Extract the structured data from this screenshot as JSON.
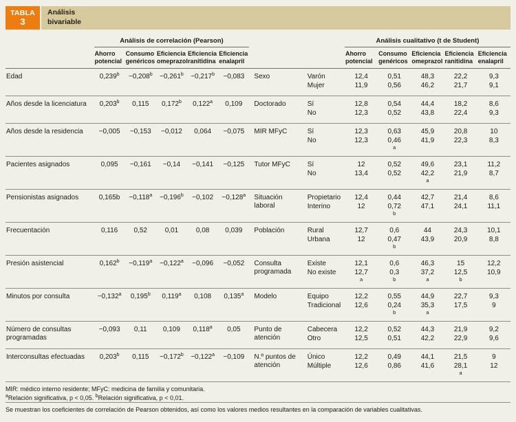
{
  "header": {
    "label": "TABLA",
    "number": "3",
    "title": "Análisis bivariable"
  },
  "groups": {
    "pearson": "Análisis de correlación (Pearson)",
    "student": "Análisis cualitativo (t de Student)"
  },
  "columns": [
    "Ahorro potencial",
    "Consumo genéricos",
    "Eficiencia omeprazol",
    "Eficiencia ranitidina",
    "Eficiencia enalapril"
  ],
  "rows": [
    {
      "label": "Edad",
      "pearson": [
        "0,239^b",
        "−0,208^b",
        "−0,261^b",
        "−0,217^b",
        "−0,083"
      ],
      "variable": "Sexo",
      "levels": [
        {
          "name": "Varón",
          "values": [
            "12,4",
            "0,51",
            "48,3",
            "22,2",
            "9,3"
          ]
        },
        {
          "name": "Mujer",
          "values": [
            "11,9",
            "0,56",
            "46,2",
            "21,7",
            "9,1"
          ]
        }
      ]
    },
    {
      "label": "Años desde la licenciatura",
      "pearson": [
        "0,203^b",
        "0,115",
        "0,172^b",
        "0,122^a",
        "0,109"
      ],
      "variable": "Doctorado",
      "levels": [
        {
          "name": "Sí",
          "values": [
            "12,8",
            "0,54",
            "44,4",
            "18,2",
            "8,6"
          ]
        },
        {
          "name": "No",
          "values": [
            "12,3",
            "0,52",
            "43,8",
            "22,4",
            "9,3"
          ]
        }
      ]
    },
    {
      "label": "Años desde la residencia",
      "pearson": [
        "−0,005",
        "−0,153",
        "−0,012",
        "0,064",
        "−0,075"
      ],
      "variable": "MIR MFyC",
      "levels": [
        {
          "name": "Sí",
          "values": [
            "12,3",
            "0,63",
            "45,9",
            "20,8",
            "10"
          ]
        },
        {
          "name": "No",
          "values": [
            "12,3",
            "0,46_a",
            "41,9",
            "22,3",
            "8,3"
          ]
        }
      ]
    },
    {
      "label": "Pacientes asignados",
      "pearson": [
        "0,095",
        "−0,161",
        "−0,14",
        "−0,141",
        "−0,125"
      ],
      "variable": "Tutor MFyC",
      "levels": [
        {
          "name": "Sí",
          "values": [
            "12",
            "0,52",
            "49,6",
            "23,1",
            "11,2"
          ]
        },
        {
          "name": "No",
          "values": [
            "13,4",
            "0,52",
            "42,2_a",
            "21,9",
            "8,7"
          ]
        }
      ]
    },
    {
      "label": "Pensionistas asignados",
      "pearson": [
        "0,165b",
        "−0,118^a",
        "−0,196^b",
        "−0,102",
        "−0,128^a"
      ],
      "variable": "Situación laboral",
      "levels": [
        {
          "name": "Propietario",
          "values": [
            "12,4",
            "0,44",
            "42,7",
            "21,4",
            "8,6"
          ]
        },
        {
          "name": "Interino",
          "values": [
            "12",
            "0,72_b",
            "47,1",
            "24,1",
            "11,1"
          ]
        }
      ]
    },
    {
      "label": "Frecuentación",
      "pearson": [
        "0,116",
        "0,52",
        "0,01",
        "0,08",
        "0,039"
      ],
      "variable": "Población",
      "levels": [
        {
          "name": "Rural",
          "values": [
            "12,7",
            "0,6",
            "44",
            "24,3",
            "10,1"
          ]
        },
        {
          "name": "Urbana",
          "values": [
            "12",
            "0,47_b",
            "43,9",
            "20,9",
            "8,8"
          ]
        }
      ]
    },
    {
      "label": "Presión asistencial",
      "pearson": [
        "0,162^b",
        "−0,119^a",
        "−0,122^a",
        "−0,096",
        "−0,052"
      ],
      "variable": "Consulta programada",
      "levels": [
        {
          "name": "Existe",
          "values": [
            "12,1",
            "0,6",
            "46,3",
            "15",
            "12,2"
          ]
        },
        {
          "name": "No existe",
          "values": [
            "12,7_a",
            "0,3_b",
            "37,2_a",
            "12,5_b",
            "10,9"
          ]
        }
      ]
    },
    {
      "label": "Minutos por consulta",
      "pearson": [
        "−0,132^a",
        "0,195^b",
        "0,119^a",
        "0,108",
        "0,135^a"
      ],
      "variable": "Modelo",
      "levels": [
        {
          "name": "Equipo",
          "values": [
            "12,2",
            "0,55",
            "44,9",
            "22,7",
            "9,3"
          ]
        },
        {
          "name": "Tradicional",
          "values": [
            "12,6",
            "0,24_b",
            "35,3_a",
            "17,5",
            "9"
          ]
        }
      ]
    },
    {
      "label": "Número de consultas programadas",
      "pearson": [
        "−0,093",
        "0,11",
        "0,109",
        "0,118^a",
        "0,05"
      ],
      "variable": "Punto de atención",
      "levels": [
        {
          "name": "Cabecera",
          "values": [
            "12,2",
            "0,52",
            "44,3",
            "21,9",
            "9,2"
          ]
        },
        {
          "name": "Otro",
          "values": [
            "12,5",
            "0,51",
            "42,2",
            "22,9",
            "9,6"
          ]
        }
      ]
    },
    {
      "label": "Interconsultas efectuadas",
      "pearson": [
        "0,203^b",
        "0,115",
        "−0,172^b",
        "−0,122^a",
        "−0,109"
      ],
      "variable": "N.º puntos de atención",
      "levels": [
        {
          "name": "Único",
          "values": [
            "12,2",
            "0,49",
            "44,1",
            "21,5",
            "9"
          ]
        },
        {
          "name": "Múltiple",
          "values": [
            "12,6",
            "0,86",
            "41,6",
            "28,1_a",
            "12"
          ]
        }
      ]
    }
  ],
  "footnotes": {
    "abbrev": "MIR: médico interno residente; MFyC: medicina de familia y comunitaria.",
    "significance": "^aRelación significativa, p < 0,05. ^bRelación significativa, p < 0,01.",
    "description": "Se muestran los coeficientes de correlación de Pearson obtenidos, así como los valores medios resultantes en la comparación de variables cualitativas."
  }
}
